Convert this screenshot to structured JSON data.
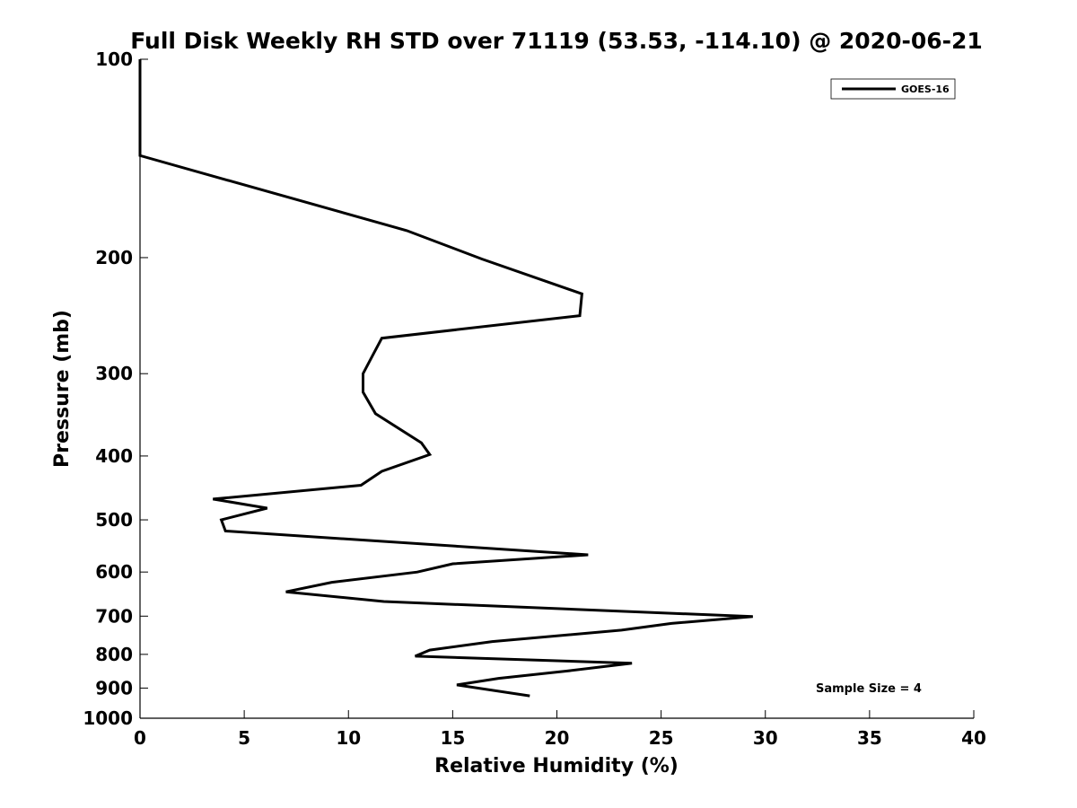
{
  "chart_data": {
    "type": "line",
    "title": "Full Disk Weekly RH STD over 71119 (53.53, -114.10) @ 2020-06-21",
    "xlabel": "Relative Humidity (%)",
    "ylabel": "Pressure (mb)",
    "xlim": [
      0,
      40
    ],
    "ylim": [
      100,
      1000
    ],
    "y_scale": "log",
    "y_reversed": true,
    "x_ticks": [
      0,
      5,
      10,
      15,
      20,
      25,
      30,
      35,
      40
    ],
    "y_ticks": [
      100,
      200,
      300,
      400,
      500,
      600,
      700,
      800,
      900,
      1000
    ],
    "grid": false,
    "legend": {
      "position": "top-right",
      "entries": [
        "GOES-16"
      ]
    },
    "annotation": "Sample Size = 4",
    "series": [
      {
        "name": "GOES-16",
        "color": "#000000",
        "points": [
          {
            "x": 0.0,
            "y": 100
          },
          {
            "x": 0.0,
            "y": 140
          },
          {
            "x": 12.8,
            "y": 182
          },
          {
            "x": 16.4,
            "y": 201
          },
          {
            "x": 21.2,
            "y": 227
          },
          {
            "x": 21.1,
            "y": 245
          },
          {
            "x": 11.6,
            "y": 265
          },
          {
            "x": 11.2,
            "y": 280
          },
          {
            "x": 10.7,
            "y": 300
          },
          {
            "x": 10.7,
            "y": 320
          },
          {
            "x": 11.3,
            "y": 345
          },
          {
            "x": 13.5,
            "y": 382
          },
          {
            "x": 13.9,
            "y": 398
          },
          {
            "x": 11.6,
            "y": 422
          },
          {
            "x": 10.6,
            "y": 443
          },
          {
            "x": 3.5,
            "y": 465
          },
          {
            "x": 6.1,
            "y": 480
          },
          {
            "x": 3.9,
            "y": 500
          },
          {
            "x": 4.1,
            "y": 520
          },
          {
            "x": 21.5,
            "y": 565
          },
          {
            "x": 15.0,
            "y": 583
          },
          {
            "x": 13.3,
            "y": 600
          },
          {
            "x": 9.2,
            "y": 622
          },
          {
            "x": 7.0,
            "y": 643
          },
          {
            "x": 11.7,
            "y": 665
          },
          {
            "x": 29.4,
            "y": 701
          },
          {
            "x": 25.5,
            "y": 718
          },
          {
            "x": 23.1,
            "y": 735
          },
          {
            "x": 16.9,
            "y": 765
          },
          {
            "x": 13.9,
            "y": 788
          },
          {
            "x": 13.2,
            "y": 805
          },
          {
            "x": 23.6,
            "y": 825
          },
          {
            "x": 20.5,
            "y": 848
          },
          {
            "x": 17.2,
            "y": 870
          },
          {
            "x": 15.2,
            "y": 890
          },
          {
            "x": 18.7,
            "y": 925
          }
        ]
      }
    ]
  }
}
